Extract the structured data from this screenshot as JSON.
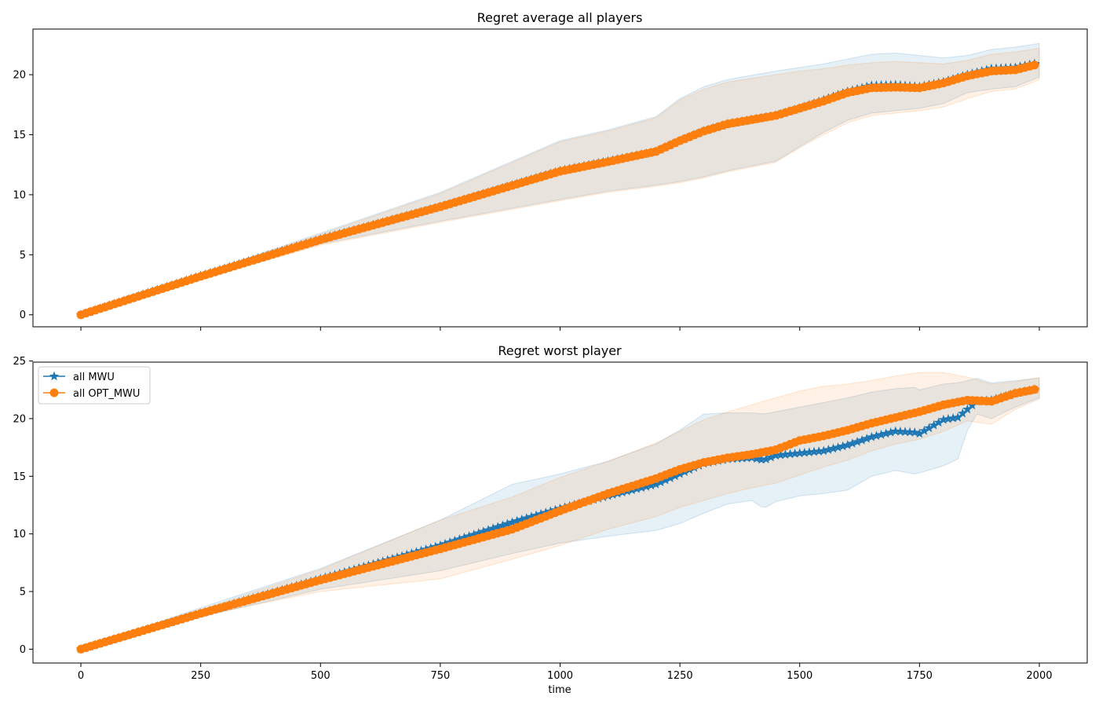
{
  "chart_data": [
    {
      "type": "line",
      "title": "Regret average all players",
      "xlabel": "",
      "ylabel": "",
      "xlim": [
        -100,
        2100
      ],
      "ylim": [
        -1,
        23.8
      ],
      "xticks": [
        0,
        250,
        500,
        750,
        1000,
        1250,
        1500,
        1750,
        2000
      ],
      "xtick_labels_visible": false,
      "yticks": [
        0,
        5,
        10,
        15,
        20
      ],
      "ytick_labels": [
        "0",
        "5",
        "10",
        "15",
        "20"
      ],
      "grid": false,
      "legend": false,
      "series": [
        {
          "name": "all MWU",
          "color": "#1f77b4",
          "marker": "star",
          "x": [
            0,
            250,
            500,
            750,
            1000,
            1100,
            1200,
            1250,
            1300,
            1350,
            1450,
            1500,
            1550,
            1600,
            1650,
            1700,
            1750,
            1800,
            1850,
            1900,
            1950,
            2000
          ],
          "mean": [
            0,
            3.25,
            6.3,
            9.0,
            12.0,
            12.8,
            13.6,
            14.5,
            15.3,
            15.9,
            16.6,
            17.2,
            17.9,
            18.6,
            19.1,
            19.15,
            19.0,
            19.4,
            20.0,
            20.5,
            20.6,
            21.0
          ],
          "lower": [
            0,
            3.1,
            5.9,
            7.8,
            9.6,
            10.3,
            10.8,
            11.1,
            11.5,
            12.0,
            12.8,
            14.0,
            15.2,
            16.2,
            16.8,
            17.0,
            17.2,
            17.6,
            18.5,
            18.8,
            19.0,
            19.8
          ],
          "upper": [
            0,
            3.4,
            6.8,
            10.2,
            14.5,
            15.4,
            16.5,
            18.0,
            19.0,
            19.6,
            20.3,
            20.6,
            20.9,
            21.3,
            21.7,
            21.8,
            21.6,
            21.4,
            21.6,
            22.1,
            22.3,
            22.6
          ]
        },
        {
          "name": "all OPT_MWU",
          "color": "#ff7f0e",
          "marker": "circle",
          "x": [
            0,
            250,
            500,
            750,
            1000,
            1100,
            1200,
            1250,
            1300,
            1350,
            1450,
            1500,
            1550,
            1600,
            1650,
            1700,
            1750,
            1800,
            1850,
            1900,
            1950,
            2000
          ],
          "mean": [
            0,
            3.2,
            6.25,
            9.0,
            11.95,
            12.75,
            13.6,
            14.5,
            15.3,
            15.9,
            16.6,
            17.2,
            17.8,
            18.5,
            18.9,
            18.95,
            18.9,
            19.3,
            19.9,
            20.3,
            20.4,
            20.9
          ],
          "lower": [
            0,
            3.0,
            5.8,
            7.7,
            9.5,
            10.2,
            10.7,
            11.0,
            11.4,
            11.9,
            12.7,
            13.9,
            15.0,
            16.0,
            16.6,
            16.8,
            17.0,
            17.3,
            18.0,
            18.6,
            18.8,
            19.6
          ],
          "upper": [
            0,
            3.4,
            6.7,
            10.1,
            14.4,
            15.3,
            16.4,
            17.9,
            18.8,
            19.4,
            20.0,
            20.3,
            20.5,
            20.8,
            21.0,
            21.1,
            21.0,
            20.9,
            21.2,
            21.7,
            21.9,
            22.2
          ]
        }
      ]
    },
    {
      "type": "line",
      "title": "Regret worst player",
      "xlabel": "time",
      "ylabel": "",
      "xlim": [
        -100,
        2100
      ],
      "ylim": [
        -1.2,
        24.9
      ],
      "xticks": [
        0,
        250,
        500,
        750,
        1000,
        1250,
        1500,
        1750,
        2000
      ],
      "xtick_labels": [
        "0",
        "250",
        "500",
        "750",
        "1000",
        "1250",
        "1500",
        "1750",
        "2000"
      ],
      "yticks": [
        0,
        5,
        10,
        15,
        20,
        25
      ],
      "ytick_labels": [
        "0",
        "5",
        "10",
        "15",
        "20",
        "25"
      ],
      "grid": false,
      "legend": "top-left",
      "series": [
        {
          "name": "all MWU",
          "color": "#1f77b4",
          "marker": "star",
          "x": [
            0,
            250,
            500,
            750,
            900,
            1000,
            1100,
            1200,
            1250,
            1300,
            1350,
            1400,
            1425,
            1450,
            1500,
            1550,
            1600,
            1650,
            1700,
            1740,
            1750,
            1800,
            1830,
            1850,
            1870,
            1900,
            1950,
            2000
          ],
          "mean": [
            0,
            3.1,
            6.1,
            9.0,
            11.0,
            12.2,
            13.3,
            14.3,
            15.2,
            16.1,
            16.5,
            16.6,
            16.4,
            16.8,
            17.0,
            17.2,
            17.7,
            18.4,
            18.9,
            18.8,
            18.7,
            19.9,
            20.1,
            20.8,
            21.5,
            21.6,
            22.2,
            22.6
          ],
          "lower": [
            0,
            2.8,
            5.2,
            6.8,
            8.3,
            9.2,
            9.8,
            10.3,
            10.9,
            11.8,
            12.6,
            12.9,
            12.2,
            12.8,
            13.3,
            13.5,
            13.8,
            15.0,
            15.5,
            15.2,
            15.3,
            15.9,
            16.5,
            19.0,
            20.4,
            20.0,
            21.0,
            21.8
          ],
          "upper": [
            0,
            3.6,
            7.0,
            11.2,
            14.3,
            15.2,
            16.3,
            17.8,
            19.0,
            20.4,
            20.5,
            20.5,
            20.4,
            20.6,
            21.0,
            21.4,
            21.8,
            22.3,
            22.6,
            22.7,
            22.5,
            23.0,
            23.1,
            23.3,
            23.5,
            23.1,
            23.3,
            23.5
          ]
        },
        {
          "name": "all OPT_MWU",
          "color": "#ff7f0e",
          "marker": "circle",
          "x": [
            0,
            250,
            500,
            750,
            900,
            1000,
            1100,
            1200,
            1250,
            1300,
            1350,
            1400,
            1450,
            1500,
            1550,
            1600,
            1650,
            1700,
            1750,
            1800,
            1850,
            1900,
            1950,
            2000
          ],
          "mean": [
            0,
            3.1,
            6.0,
            8.7,
            10.4,
            12.0,
            13.5,
            14.8,
            15.6,
            16.2,
            16.6,
            16.9,
            17.3,
            18.1,
            18.5,
            19.0,
            19.6,
            20.1,
            20.6,
            21.2,
            21.6,
            21.5,
            22.2,
            22.6
          ],
          "lower": [
            0,
            2.9,
            5.0,
            6.1,
            7.8,
            9.0,
            10.4,
            11.5,
            12.3,
            12.9,
            13.5,
            14.0,
            14.4,
            15.1,
            15.8,
            16.4,
            17.2,
            17.8,
            18.2,
            18.9,
            19.8,
            19.5,
            20.8,
            21.7
          ],
          "upper": [
            0,
            3.4,
            6.9,
            11.2,
            13.2,
            14.9,
            16.3,
            17.9,
            18.9,
            19.9,
            20.6,
            21.2,
            21.8,
            22.4,
            22.8,
            23.0,
            23.3,
            23.7,
            24.0,
            24.0,
            23.6,
            23.0,
            23.2,
            23.6
          ]
        }
      ]
    }
  ]
}
